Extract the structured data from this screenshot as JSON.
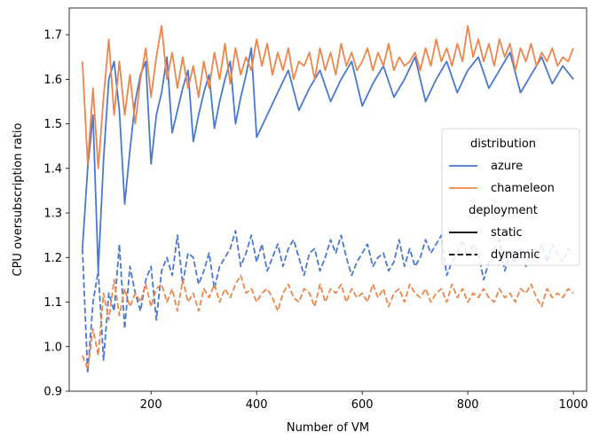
{
  "chart_data": {
    "type": "line",
    "title": "",
    "xlabel": "Number of VM",
    "ylabel": "CPU oversubscription ratio",
    "xlim": [
      45,
      1025
    ],
    "ylim": [
      0.9,
      1.76
    ],
    "xticks": [
      200,
      400,
      600,
      800,
      1000
    ],
    "yticks": [
      0.9,
      1.0,
      1.1,
      1.2,
      1.3,
      1.4,
      1.5,
      1.6,
      1.7
    ],
    "ytick_labels": [
      "0.9",
      "1.0",
      "1.1",
      "1.2",
      "1.3",
      "1.4",
      "1.5",
      "1.6",
      "1.7"
    ],
    "grid": false,
    "legend": {
      "position": "right",
      "groups": [
        {
          "title": "distribution",
          "entries": [
            {
              "label": "azure",
              "color": "#4878d0",
              "style": "solid"
            },
            {
              "label": "chameleon",
              "color": "#ee854a",
              "style": "solid"
            }
          ]
        },
        {
          "title": "deployment",
          "entries": [
            {
              "label": "static",
              "color": "#000000",
              "style": "solid"
            },
            {
              "label": "dynamic",
              "color": "#000000",
              "style": "dashed"
            }
          ]
        }
      ]
    },
    "series": [
      {
        "name": "azure",
        "deployment": "static",
        "color": "#4878d0",
        "dash": "solid",
        "x": [
          70,
          80,
          90,
          100,
          110,
          120,
          130,
          140,
          150,
          160,
          170,
          180,
          190,
          200,
          210,
          220,
          230,
          240,
          250,
          260,
          270,
          280,
          290,
          300,
          310,
          320,
          330,
          340,
          350,
          360,
          370,
          380,
          390,
          400,
          420,
          440,
          460,
          480,
          500,
          520,
          540,
          560,
          580,
          600,
          620,
          640,
          660,
          680,
          700,
          720,
          740,
          760,
          780,
          800,
          820,
          840,
          860,
          880,
          900,
          920,
          940,
          960,
          980,
          1000
        ],
        "y": [
          1.22,
          1.4,
          1.52,
          1.17,
          1.42,
          1.6,
          1.64,
          1.53,
          1.32,
          1.44,
          1.55,
          1.61,
          1.64,
          1.41,
          1.52,
          1.57,
          1.65,
          1.48,
          1.53,
          1.58,
          1.62,
          1.46,
          1.52,
          1.57,
          1.61,
          1.49,
          1.55,
          1.6,
          1.64,
          1.5,
          1.56,
          1.61,
          1.67,
          1.47,
          1.52,
          1.57,
          1.62,
          1.53,
          1.58,
          1.62,
          1.55,
          1.6,
          1.64,
          1.54,
          1.59,
          1.63,
          1.56,
          1.6,
          1.65,
          1.55,
          1.6,
          1.64,
          1.57,
          1.62,
          1.65,
          1.58,
          1.62,
          1.66,
          1.57,
          1.61,
          1.65,
          1.59,
          1.63,
          1.6
        ]
      },
      {
        "name": "chameleon",
        "deployment": "static",
        "color": "#ee854a",
        "dash": "solid",
        "x": [
          70,
          80,
          90,
          100,
          110,
          120,
          130,
          140,
          150,
          160,
          170,
          180,
          190,
          200,
          210,
          220,
          230,
          240,
          250,
          260,
          270,
          280,
          290,
          300,
          310,
          320,
          330,
          340,
          350,
          360,
          370,
          380,
          390,
          400,
          410,
          420,
          430,
          440,
          450,
          460,
          470,
          480,
          490,
          500,
          510,
          520,
          530,
          540,
          550,
          560,
          570,
          580,
          590,
          600,
          610,
          620,
          630,
          640,
          650,
          660,
          670,
          680,
          690,
          700,
          710,
          720,
          730,
          740,
          750,
          760,
          770,
          780,
          790,
          800,
          810,
          820,
          830,
          840,
          850,
          860,
          870,
          880,
          890,
          900,
          910,
          920,
          930,
          940,
          950,
          960,
          970,
          980,
          990,
          1000
        ],
        "y": [
          1.64,
          1.41,
          1.58,
          1.4,
          1.56,
          1.69,
          1.52,
          1.64,
          1.52,
          1.61,
          1.5,
          1.6,
          1.67,
          1.56,
          1.65,
          1.72,
          1.6,
          1.66,
          1.58,
          1.65,
          1.58,
          1.63,
          1.56,
          1.64,
          1.58,
          1.66,
          1.6,
          1.68,
          1.59,
          1.67,
          1.61,
          1.65,
          1.62,
          1.69,
          1.63,
          1.68,
          1.61,
          1.66,
          1.62,
          1.67,
          1.6,
          1.64,
          1.63,
          1.66,
          1.6,
          1.67,
          1.62,
          1.66,
          1.61,
          1.68,
          1.63,
          1.66,
          1.62,
          1.64,
          1.67,
          1.62,
          1.66,
          1.63,
          1.68,
          1.62,
          1.65,
          1.63,
          1.64,
          1.66,
          1.62,
          1.67,
          1.63,
          1.69,
          1.64,
          1.67,
          1.63,
          1.68,
          1.64,
          1.72,
          1.65,
          1.69,
          1.64,
          1.68,
          1.63,
          1.69,
          1.65,
          1.68,
          1.62,
          1.67,
          1.64,
          1.68,
          1.63,
          1.66,
          1.64,
          1.67,
          1.63,
          1.65,
          1.64,
          1.67
        ]
      },
      {
        "name": "azure",
        "deployment": "dynamic",
        "color": "#4878d0",
        "dash": "dashed",
        "x": [
          70,
          80,
          90,
          100,
          110,
          120,
          130,
          140,
          150,
          160,
          170,
          180,
          190,
          200,
          210,
          220,
          230,
          240,
          250,
          260,
          270,
          280,
          290,
          300,
          310,
          320,
          330,
          340,
          350,
          360,
          370,
          380,
          390,
          400,
          410,
          420,
          430,
          440,
          450,
          460,
          470,
          480,
          490,
          500,
          510,
          520,
          530,
          540,
          550,
          560,
          570,
          580,
          590,
          600,
          610,
          620,
          630,
          640,
          650,
          660,
          670,
          680,
          690,
          700,
          710,
          720,
          730,
          740,
          750,
          760,
          770,
          780,
          790,
          800,
          810,
          820,
          830,
          840,
          850,
          860,
          870,
          880,
          890,
          900,
          910,
          920,
          930,
          940,
          950,
          960,
          970,
          980,
          990,
          1000
        ],
        "y": [
          1.22,
          0.94,
          1.1,
          1.17,
          0.97,
          1.12,
          1.08,
          1.23,
          1.04,
          1.18,
          1.12,
          1.08,
          1.15,
          1.18,
          1.06,
          1.17,
          1.2,
          1.16,
          1.25,
          1.14,
          1.21,
          1.2,
          1.14,
          1.17,
          1.21,
          1.13,
          1.18,
          1.2,
          1.22,
          1.26,
          1.18,
          1.21,
          1.25,
          1.19,
          1.23,
          1.17,
          1.2,
          1.23,
          1.18,
          1.22,
          1.24,
          1.2,
          1.16,
          1.21,
          1.22,
          1.17,
          1.2,
          1.24,
          1.21,
          1.25,
          1.2,
          1.16,
          1.19,
          1.21,
          1.23,
          1.18,
          1.2,
          1.21,
          1.17,
          1.19,
          1.24,
          1.18,
          1.22,
          1.18,
          1.2,
          1.24,
          1.21,
          1.23,
          1.25,
          1.16,
          1.19,
          1.21,
          1.24,
          1.2,
          1.23,
          1.21,
          1.15,
          1.19,
          1.22,
          1.24,
          1.17,
          1.21,
          1.19,
          1.22,
          1.18,
          1.21,
          1.2,
          1.23,
          1.19,
          1.23,
          1.21,
          1.19,
          1.22,
          1.21
        ]
      },
      {
        "name": "chameleon",
        "deployment": "dynamic",
        "color": "#ee854a",
        "dash": "dashed",
        "x": [
          70,
          80,
          90,
          100,
          110,
          120,
          130,
          140,
          150,
          160,
          170,
          180,
          190,
          200,
          210,
          220,
          230,
          240,
          250,
          260,
          270,
          280,
          290,
          300,
          310,
          320,
          330,
          340,
          350,
          360,
          370,
          380,
          390,
          400,
          410,
          420,
          430,
          440,
          450,
          460,
          470,
          480,
          490,
          500,
          510,
          520,
          530,
          540,
          550,
          560,
          570,
          580,
          590,
          600,
          610,
          620,
          630,
          640,
          650,
          660,
          670,
          680,
          690,
          700,
          710,
          720,
          730,
          740,
          750,
          760,
          770,
          780,
          790,
          800,
          810,
          820,
          830,
          840,
          850,
          860,
          870,
          880,
          890,
          900,
          910,
          920,
          930,
          940,
          950,
          960,
          970,
          980,
          990,
          1000
        ],
        "y": [
          0.98,
          0.95,
          1.04,
          0.98,
          1.12,
          1.06,
          1.15,
          1.07,
          1.13,
          1.09,
          1.12,
          1.1,
          1.14,
          1.09,
          1.13,
          1.14,
          1.1,
          1.13,
          1.08,
          1.15,
          1.1,
          1.12,
          1.08,
          1.13,
          1.11,
          1.14,
          1.1,
          1.13,
          1.11,
          1.14,
          1.16,
          1.12,
          1.13,
          1.1,
          1.12,
          1.13,
          1.11,
          1.08,
          1.12,
          1.14,
          1.11,
          1.1,
          1.13,
          1.12,
          1.09,
          1.14,
          1.1,
          1.13,
          1.12,
          1.14,
          1.1,
          1.13,
          1.11,
          1.12,
          1.1,
          1.14,
          1.11,
          1.13,
          1.09,
          1.12,
          1.13,
          1.1,
          1.14,
          1.12,
          1.11,
          1.13,
          1.1,
          1.12,
          1.13,
          1.1,
          1.14,
          1.11,
          1.13,
          1.1,
          1.12,
          1.11,
          1.13,
          1.11,
          1.1,
          1.13,
          1.11,
          1.12,
          1.1,
          1.13,
          1.12,
          1.14,
          1.11,
          1.09,
          1.13,
          1.11,
          1.12,
          1.11,
          1.13,
          1.12
        ]
      }
    ]
  }
}
